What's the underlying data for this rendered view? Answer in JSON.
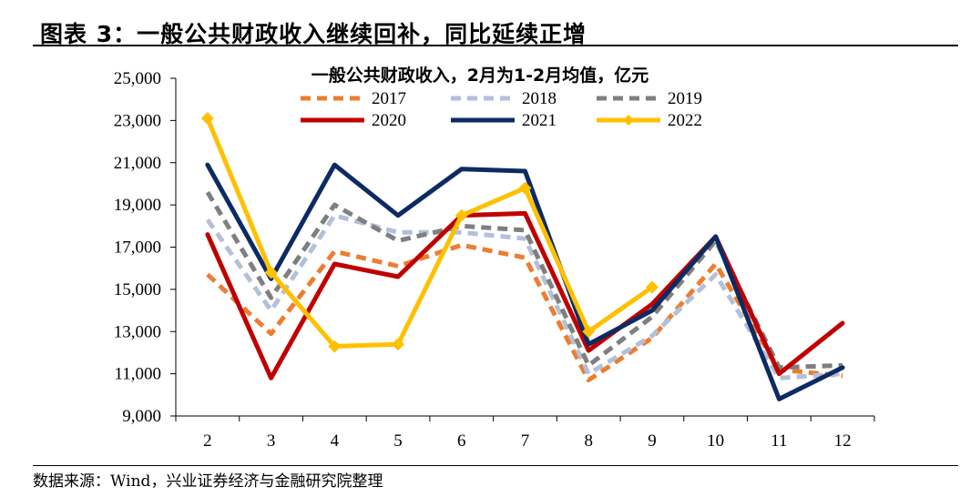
{
  "figure": {
    "title": "图表 3：一般公共财政收入继续回补，同比延续正增",
    "source": "数据来源：Wind，兴业证券经济与金融研究院整理"
  },
  "chart_data": {
    "type": "line",
    "title": "一般公共财政收入，2月为1-2月均值，亿元",
    "xlabel": "",
    "ylabel": "",
    "categories": [
      "2",
      "3",
      "4",
      "5",
      "6",
      "7",
      "8",
      "9",
      "10",
      "11",
      "12"
    ],
    "ylim": [
      9000,
      25000
    ],
    "yticks": [
      9000,
      11000,
      13000,
      15000,
      17000,
      19000,
      21000,
      23000,
      25000
    ],
    "ytick_labels": [
      "9,000",
      "11,000",
      "13,000",
      "15,000",
      "17,000",
      "19,000",
      "21,000",
      "23,000",
      "25,000"
    ],
    "grid": false,
    "legend_position": "top",
    "series": [
      {
        "name": "2017",
        "color": "#ED7D31",
        "style": "dashed",
        "marker": false,
        "values": [
          15700,
          12900,
          16800,
          16100,
          17100,
          16500,
          10700,
          12700,
          16200,
          11200,
          10900
        ]
      },
      {
        "name": "2018",
        "color": "#B4C0D8",
        "style": "dashed",
        "marker": false,
        "values": [
          18300,
          14000,
          18500,
          17700,
          17700,
          17400,
          11000,
          12800,
          15700,
          10800,
          11000
        ]
      },
      {
        "name": "2019",
        "color": "#7F7F7F",
        "style": "dashed",
        "marker": false,
        "values": [
          19600,
          14600,
          19000,
          17300,
          18000,
          17800,
          11400,
          13700,
          17300,
          11300,
          11400
        ]
      },
      {
        "name": "2020",
        "color": "#C00000",
        "style": "solid",
        "marker": false,
        "values": [
          17600,
          10800,
          16200,
          15600,
          18500,
          18600,
          12100,
          14300,
          17500,
          11000,
          13400
        ]
      },
      {
        "name": "2021",
        "color": "#0D2B63",
        "style": "solid",
        "marker": false,
        "values": [
          20900,
          15500,
          20900,
          18500,
          20700,
          20600,
          12400,
          14000,
          17500,
          9800,
          11300
        ]
      },
      {
        "name": "2022",
        "color": "#FFC000",
        "style": "solid",
        "marker": true,
        "values": [
          23100,
          15800,
          12300,
          12400,
          18500,
          19800,
          13000,
          15100,
          null,
          null,
          null
        ]
      }
    ]
  }
}
